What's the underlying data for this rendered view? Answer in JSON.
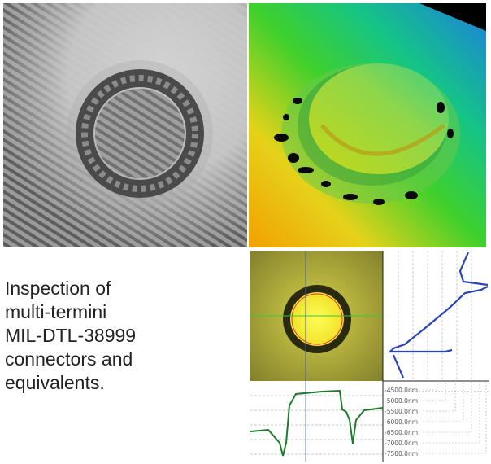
{
  "caption": {
    "lines": [
      "Inspection of",
      "multi-termini",
      "MIL-DTL-38999",
      "connectors and",
      "equivalents."
    ]
  },
  "analysis": {
    "height_scale": [
      "-4500.0nm",
      "-5000.0nm",
      "-5500.0nm",
      "-6000.0nm",
      "-6500.0nm",
      "-7000.0nm",
      "-7500.0nm"
    ]
  },
  "colors": {
    "profile_vertical": "#2a46b4",
    "profile_horizontal": "#1f7a2e",
    "crosshair_h": "#2ecc40",
    "crosshair_v": "#4a5fb0",
    "fit_circle": "#e0303a"
  }
}
